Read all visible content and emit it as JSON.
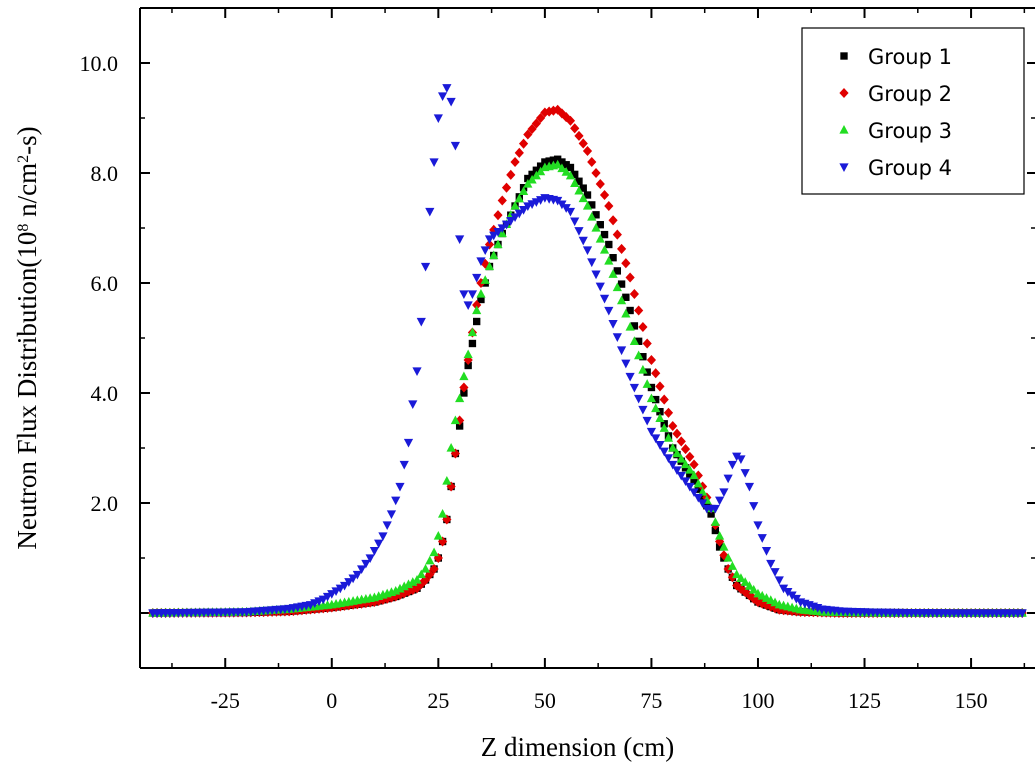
{
  "chart_data": {
    "type": "scatter",
    "title": "",
    "xlabel": "Z dimension (cm)",
    "ylabel": {
      "prefix": "Neutron Flux Distribution(10",
      "sup1": "8",
      "mid": " n/cm",
      "sup2": "2",
      "suffix": "-s)"
    },
    "xlim": [
      -45,
      165
    ],
    "ylim": [
      -1,
      11
    ],
    "xticks": [
      -25,
      0,
      25,
      50,
      75,
      100,
      125,
      150
    ],
    "xtick_labels": [
      "-25",
      "0",
      "25",
      "50",
      "75",
      "100",
      "125",
      "150"
    ],
    "yticks": [
      2,
      4,
      6,
      8,
      10
    ],
    "ytick_labels": [
      "2.0",
      "4.0",
      "6.0",
      "8.0",
      "10.0"
    ],
    "grid": false,
    "legend_position": "top-right",
    "series": [
      {
        "name": "Group 1",
        "color": "#000000",
        "marker": "square",
        "x": [
          -42,
          -20,
          -10,
          0,
          10,
          15,
          20,
          22,
          24,
          25,
          26,
          27,
          28,
          29,
          30,
          31,
          32,
          33,
          34,
          35,
          37,
          40,
          43,
          46,
          50,
          53,
          56,
          60,
          65,
          70,
          75,
          80,
          85,
          87,
          89,
          91,
          93,
          95,
          100,
          105,
          110,
          115,
          120,
          130,
          145,
          162
        ],
        "y": [
          0.0,
          0.01,
          0.03,
          0.1,
          0.2,
          0.3,
          0.45,
          0.6,
          0.8,
          1.0,
          1.3,
          1.7,
          2.3,
          2.9,
          3.4,
          4.0,
          4.5,
          4.9,
          5.3,
          5.7,
          6.3,
          6.9,
          7.4,
          7.9,
          8.2,
          8.25,
          8.1,
          7.6,
          6.7,
          5.5,
          4.1,
          3.0,
          2.4,
          2.1,
          1.8,
          1.2,
          0.8,
          0.5,
          0.2,
          0.06,
          0.02,
          0.01,
          0.0,
          0.0,
          0.0,
          0.0
        ]
      },
      {
        "name": "Group 2",
        "color": "#e00000",
        "marker": "diamond",
        "x": [
          -42,
          -20,
          -10,
          0,
          10,
          15,
          20,
          22,
          24,
          25,
          26,
          27,
          28,
          29,
          30,
          31,
          32,
          33,
          34,
          35,
          37,
          40,
          43,
          46,
          50,
          53,
          56,
          60,
          65,
          70,
          75,
          80,
          85,
          87,
          89,
          91,
          93,
          95,
          100,
          105,
          110,
          115,
          120,
          130,
          145,
          162
        ],
        "y": [
          0.0,
          0.01,
          0.03,
          0.1,
          0.2,
          0.3,
          0.45,
          0.6,
          0.8,
          1.0,
          1.3,
          1.7,
          2.3,
          2.9,
          3.5,
          4.1,
          4.6,
          5.1,
          5.6,
          6.0,
          6.7,
          7.5,
          8.2,
          8.7,
          9.1,
          9.15,
          8.95,
          8.4,
          7.4,
          6.1,
          4.6,
          3.4,
          2.7,
          2.3,
          1.9,
          1.3,
          0.8,
          0.5,
          0.2,
          0.06,
          0.02,
          0.01,
          0.0,
          0.0,
          0.0,
          0.0
        ]
      },
      {
        "name": "Group 3",
        "color": "#22dd22",
        "marker": "triangle-up",
        "x": [
          -42,
          -20,
          -10,
          0,
          10,
          15,
          20,
          22,
          24,
          25,
          26,
          27,
          28,
          29,
          30,
          31,
          32,
          33,
          34,
          35,
          37,
          40,
          43,
          46,
          50,
          53,
          56,
          60,
          65,
          70,
          75,
          80,
          85,
          87,
          89,
          91,
          93,
          95,
          100,
          105,
          110,
          115,
          120,
          130,
          145,
          162
        ],
        "y": [
          0.0,
          0.02,
          0.07,
          0.15,
          0.28,
          0.4,
          0.6,
          0.8,
          1.1,
          1.4,
          1.8,
          2.4,
          3.0,
          3.5,
          3.9,
          4.3,
          4.7,
          5.1,
          5.5,
          5.8,
          6.3,
          6.9,
          7.4,
          7.8,
          8.1,
          8.15,
          7.95,
          7.4,
          6.4,
          5.2,
          3.9,
          3.0,
          2.5,
          2.2,
          1.9,
          1.4,
          1.0,
          0.7,
          0.35,
          0.15,
          0.06,
          0.02,
          0.01,
          0.0,
          0.0,
          0.0
        ]
      },
      {
        "name": "Group 4",
        "color": "#1a1ad8",
        "marker": "triangle-down",
        "x": [
          -42,
          -20,
          -10,
          -5,
          -2,
          0,
          3,
          6,
          9,
          12,
          14,
          16,
          18,
          19,
          20,
          21,
          22,
          23,
          24,
          25,
          26,
          27,
          28,
          29,
          30,
          31,
          32,
          33,
          35,
          37,
          40,
          43,
          46,
          50,
          53,
          56,
          60,
          65,
          70,
          75,
          80,
          85,
          88,
          90,
          92,
          94,
          95,
          96,
          98,
          100,
          103,
          106,
          110,
          115,
          120,
          130,
          145,
          162
        ],
        "y": [
          0.0,
          0.02,
          0.08,
          0.15,
          0.25,
          0.35,
          0.5,
          0.7,
          1.0,
          1.4,
          1.8,
          2.3,
          3.1,
          3.8,
          4.4,
          5.3,
          6.3,
          7.3,
          8.2,
          9.0,
          9.4,
          9.55,
          9.3,
          8.5,
          6.8,
          5.8,
          5.6,
          5.8,
          6.4,
          6.8,
          7.0,
          7.2,
          7.4,
          7.55,
          7.5,
          7.3,
          6.6,
          5.5,
          4.3,
          3.3,
          2.7,
          2.2,
          1.9,
          1.9,
          2.2,
          2.7,
          2.85,
          2.8,
          2.3,
          1.6,
          0.9,
          0.45,
          0.2,
          0.07,
          0.03,
          0.01,
          0.0,
          0.0
        ]
      }
    ]
  }
}
